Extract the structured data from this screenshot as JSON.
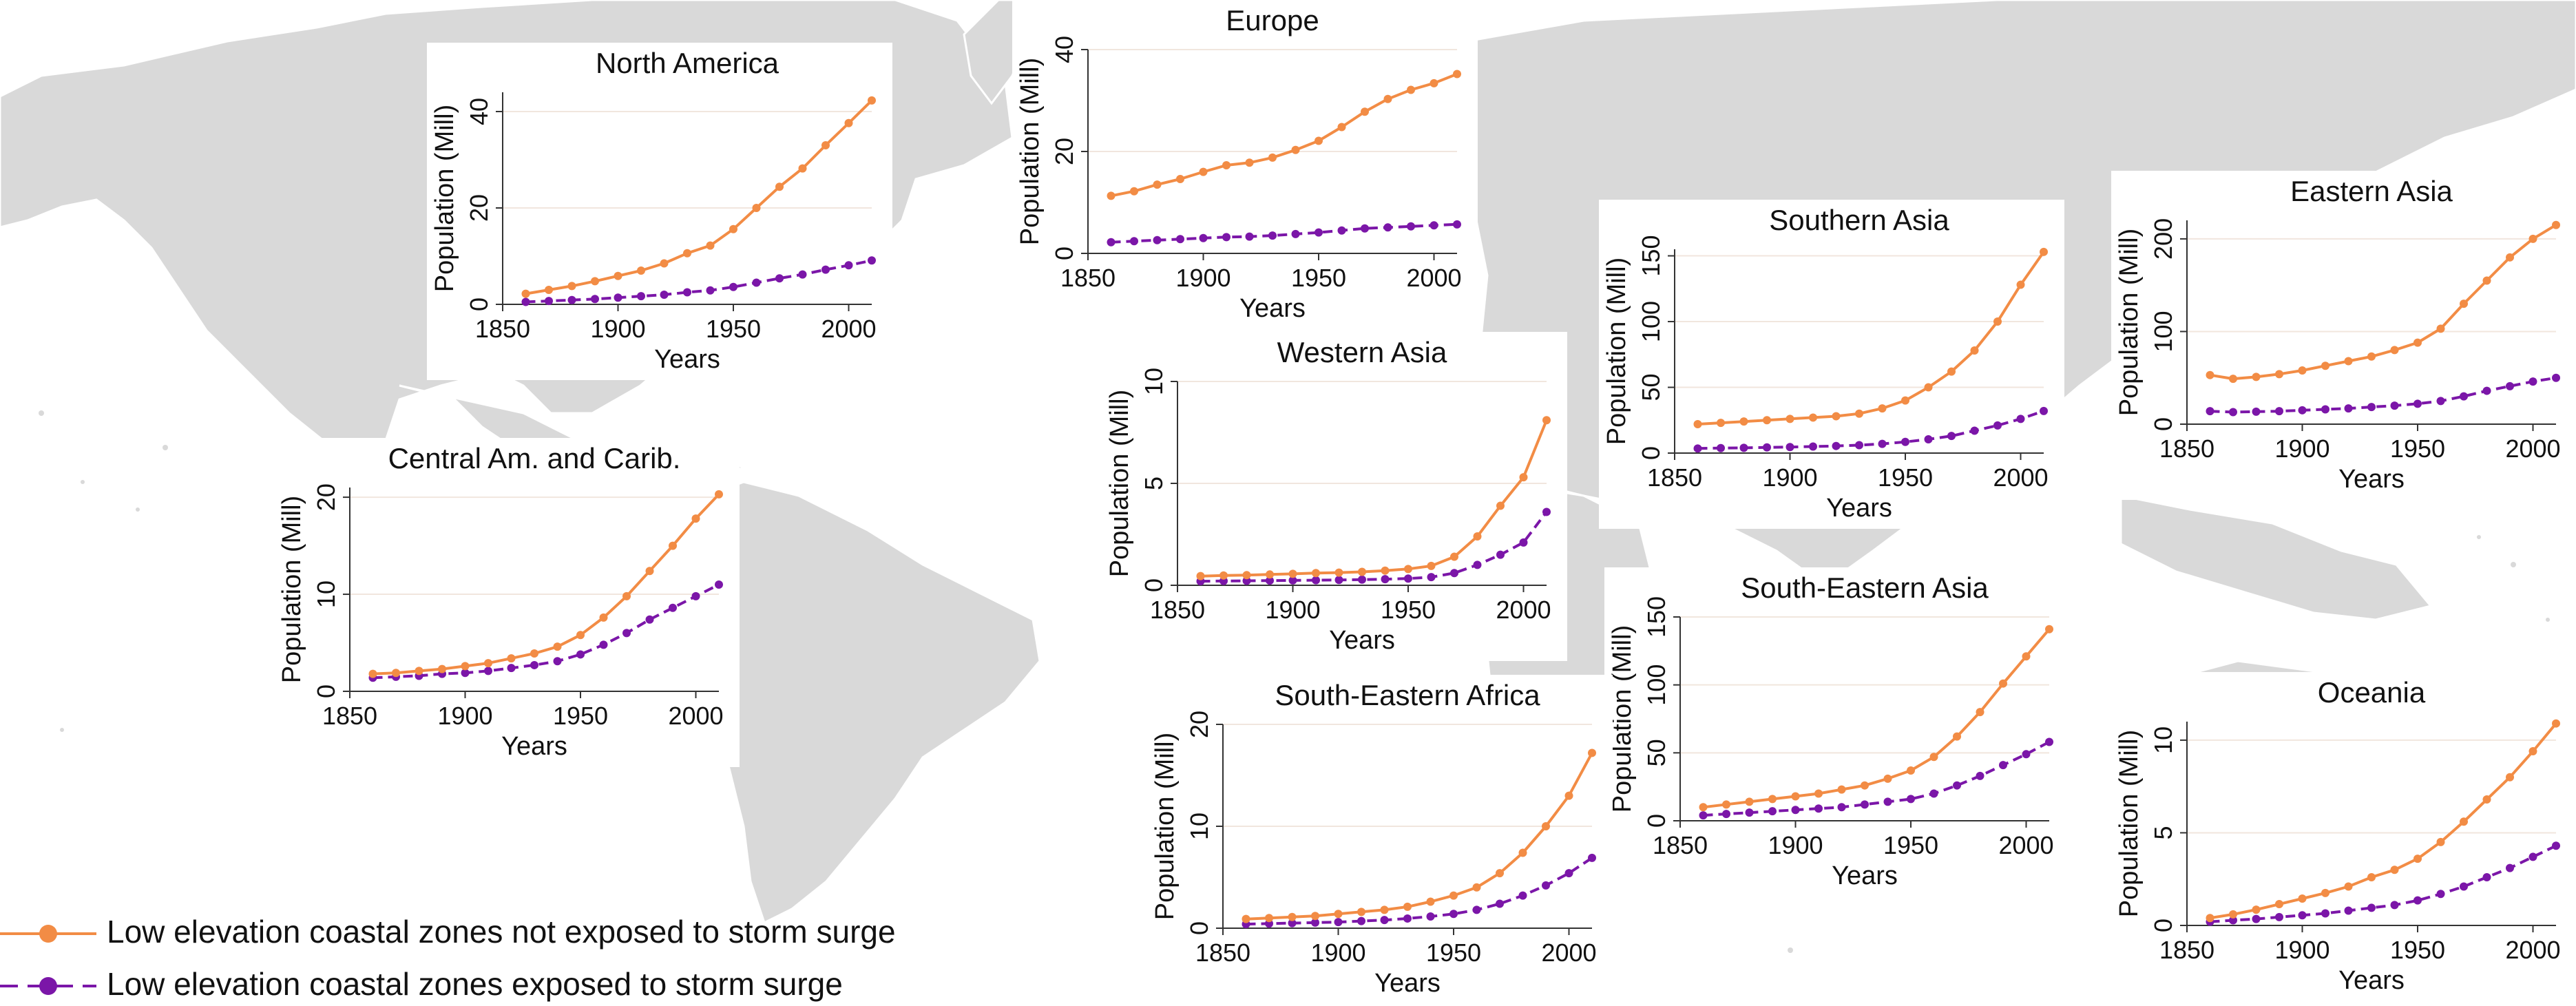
{
  "colors": {
    "not_exposed": "#f28c45",
    "exposed": "#7b16a8",
    "land": "#d9d9d9",
    "border": "#a8a8a8"
  },
  "legend": {
    "not_exposed_label": "Low elevation coastal zones not exposed to storm surge",
    "exposed_label": "Low elevation coastal zones exposed to storm surge"
  },
  "chart_data": [
    {
      "type": "line",
      "title": "North America",
      "xlabel": "Years",
      "ylabel": "Population (Mill)",
      "xlim": [
        1850,
        2010
      ],
      "ylim": [
        0,
        44
      ],
      "xticks": [
        "1850",
        "1900",
        "1950",
        "2000"
      ],
      "yticks": [
        "0",
        "20",
        "40"
      ],
      "x": [
        1860,
        1870,
        1880,
        1890,
        1900,
        1910,
        1920,
        1930,
        1940,
        1950,
        1960,
        1970,
        1980,
        1990,
        2000,
        2010
      ],
      "series": [
        {
          "name": "Low elevation coastal zones not exposed to storm surge",
          "values": [
            2.2,
            3.0,
            3.8,
            4.8,
            5.9,
            7.0,
            8.5,
            10.6,
            12.2,
            15.6,
            20.0,
            24.4,
            28.2,
            33.0,
            37.6,
            42.3
          ]
        },
        {
          "name": "Low elevation coastal zones exposed to storm surge",
          "values": [
            0.5,
            0.7,
            0.9,
            1.1,
            1.4,
            1.7,
            2.0,
            2.5,
            2.9,
            3.6,
            4.5,
            5.4,
            6.2,
            7.2,
            8.1,
            9.1
          ]
        }
      ]
    },
    {
      "type": "line",
      "title": "Europe",
      "xlabel": "Years",
      "ylabel": "Population (Mill)",
      "xlim": [
        1850,
        2010
      ],
      "ylim": [
        0,
        40
      ],
      "xticks": [
        "1850",
        "1900",
        "1950",
        "2000"
      ],
      "yticks": [
        "0",
        "20",
        "40"
      ],
      "x": [
        1860,
        1870,
        1880,
        1890,
        1900,
        1910,
        1920,
        1930,
        1940,
        1950,
        1960,
        1970,
        1980,
        1990,
        2000,
        2010
      ],
      "series": [
        {
          "name": "Low elevation coastal zones not exposed to storm surge",
          "values": [
            11.3,
            12.2,
            13.5,
            14.6,
            16.0,
            17.3,
            17.8,
            18.8,
            20.3,
            22.1,
            24.8,
            27.8,
            30.3,
            32.1,
            33.4,
            35.2
          ]
        },
        {
          "name": "Low elevation coastal zones exposed to storm surge",
          "values": [
            2.2,
            2.4,
            2.6,
            2.8,
            3.0,
            3.2,
            3.3,
            3.5,
            3.8,
            4.1,
            4.5,
            4.9,
            5.1,
            5.3,
            5.5,
            5.7
          ]
        }
      ]
    },
    {
      "type": "line",
      "title": "Western Asia",
      "xlabel": "Years",
      "ylabel": "Population (Mill)",
      "xlim": [
        1850,
        2010
      ],
      "ylim": [
        0,
        10
      ],
      "xticks": [
        "1850",
        "1900",
        "1950",
        "2000"
      ],
      "yticks": [
        "0",
        "5",
        "10"
      ],
      "x": [
        1860,
        1870,
        1880,
        1890,
        1900,
        1910,
        1920,
        1930,
        1940,
        1950,
        1960,
        1970,
        1980,
        1990,
        2000,
        2010
      ],
      "series": [
        {
          "name": "Low elevation coastal zones not exposed to storm surge",
          "values": [
            0.45,
            0.48,
            0.5,
            0.53,
            0.56,
            0.6,
            0.62,
            0.66,
            0.72,
            0.8,
            0.95,
            1.4,
            2.4,
            3.9,
            5.3,
            8.1
          ]
        },
        {
          "name": "Low elevation coastal zones exposed to storm surge",
          "values": [
            0.2,
            0.21,
            0.22,
            0.23,
            0.24,
            0.25,
            0.26,
            0.28,
            0.3,
            0.33,
            0.4,
            0.6,
            1.0,
            1.5,
            2.1,
            3.6
          ]
        }
      ]
    },
    {
      "type": "line",
      "title": "Southern Asia",
      "xlabel": "Years",
      "ylabel": "Population (Mill)",
      "xlim": [
        1850,
        2010
      ],
      "ylim": [
        0,
        155
      ],
      "xticks": [
        "1850",
        "1900",
        "1950",
        "2000"
      ],
      "yticks": [
        "0",
        "50",
        "100",
        "150"
      ],
      "x": [
        1860,
        1870,
        1880,
        1890,
        1900,
        1910,
        1920,
        1930,
        1940,
        1950,
        1960,
        1970,
        1980,
        1990,
        2000,
        2010
      ],
      "series": [
        {
          "name": "Low elevation coastal zones not exposed to storm surge",
          "values": [
            22,
            23,
            24,
            25,
            26,
            27,
            28,
            30,
            34,
            40,
            50,
            62,
            78,
            100,
            128,
            153
          ]
        },
        {
          "name": "Low elevation coastal zones exposed to storm surge",
          "values": [
            3.5,
            3.8,
            4.0,
            4.3,
            4.6,
            5.0,
            5.4,
            6.0,
            7.0,
            8.5,
            10.5,
            13,
            17,
            21,
            26,
            32
          ]
        }
      ]
    },
    {
      "type": "line",
      "title": "Eastern Asia",
      "xlabel": "Years",
      "ylabel": "Population (Mill)",
      "xlim": [
        1850,
        2010
      ],
      "ylim": [
        0,
        220
      ],
      "xticks": [
        "1850",
        "1900",
        "1950",
        "2000"
      ],
      "yticks": [
        "0",
        "100",
        "200"
      ],
      "x": [
        1860,
        1870,
        1880,
        1890,
        1900,
        1910,
        1920,
        1930,
        1940,
        1950,
        1960,
        1970,
        1980,
        1990,
        2000,
        2010
      ],
      "series": [
        {
          "name": "Low elevation coastal zones not exposed to storm surge",
          "values": [
            53,
            49,
            51,
            54,
            58,
            63,
            68,
            73,
            80,
            88,
            103,
            130,
            155,
            180,
            200,
            215
          ]
        },
        {
          "name": "Low elevation coastal zones exposed to storm surge",
          "values": [
            14,
            13,
            13.5,
            14,
            15,
            16,
            17,
            18.5,
            20,
            22,
            25,
            30,
            36,
            41,
            46,
            50
          ]
        }
      ]
    },
    {
      "type": "line",
      "title": "Central Am. and Carib.",
      "xlabel": "Years",
      "ylabel": "Population (Mill)",
      "xlim": [
        1850,
        2010
      ],
      "ylim": [
        0,
        21
      ],
      "xticks": [
        "1850",
        "1900",
        "1950",
        "2000"
      ],
      "yticks": [
        "0",
        "10",
        "20"
      ],
      "x": [
        1860,
        1870,
        1880,
        1890,
        1900,
        1910,
        1920,
        1930,
        1940,
        1950,
        1960,
        1970,
        1980,
        1990,
        2000,
        2010
      ],
      "series": [
        {
          "name": "Low elevation coastal zones not exposed to storm surge",
          "values": [
            1.8,
            1.9,
            2.1,
            2.3,
            2.6,
            2.9,
            3.4,
            3.9,
            4.6,
            5.8,
            7.6,
            9.8,
            12.4,
            15.0,
            17.8,
            20.3
          ]
        },
        {
          "name": "Low elevation coastal zones exposed to storm surge",
          "values": [
            1.4,
            1.5,
            1.6,
            1.8,
            1.9,
            2.1,
            2.4,
            2.7,
            3.1,
            3.8,
            4.8,
            6.0,
            7.4,
            8.6,
            9.8,
            11.0
          ]
        }
      ]
    },
    {
      "type": "line",
      "title": "South-Eastern Asia",
      "xlabel": "Years",
      "ylabel": "Population (Mill)",
      "xlim": [
        1850,
        2010
      ],
      "ylim": [
        0,
        150
      ],
      "xticks": [
        "1850",
        "1900",
        "1950",
        "2000"
      ],
      "yticks": [
        "0",
        "50",
        "100",
        "150"
      ],
      "x": [
        1860,
        1870,
        1880,
        1890,
        1900,
        1910,
        1920,
        1930,
        1940,
        1950,
        1960,
        1970,
        1980,
        1990,
        2000,
        2010
      ],
      "series": [
        {
          "name": "Low elevation coastal zones not exposed to storm surge",
          "values": [
            10,
            12,
            14,
            16,
            18,
            20,
            23,
            26,
            31,
            37,
            47,
            62,
            80,
            101,
            121,
            141
          ]
        },
        {
          "name": "Low elevation coastal zones exposed to storm surge",
          "values": [
            4,
            5,
            6,
            7,
            8,
            9,
            10,
            12,
            14,
            16,
            20,
            26,
            33,
            41,
            49,
            58
          ]
        }
      ]
    },
    {
      "type": "line",
      "title": "South-Eastern Africa",
      "xlabel": "Years",
      "ylabel": "Population (Mill)",
      "xlim": [
        1850,
        2010
      ],
      "ylim": [
        0,
        20
      ],
      "xticks": [
        "1850",
        "1900",
        "1950",
        "2000"
      ],
      "yticks": [
        "0",
        "10",
        "20"
      ],
      "x": [
        1860,
        1870,
        1880,
        1890,
        1900,
        1910,
        1920,
        1930,
        1940,
        1950,
        1960,
        1970,
        1980,
        1990,
        2000,
        2010
      ],
      "series": [
        {
          "name": "Low elevation coastal zones not exposed to storm surge",
          "values": [
            0.9,
            1.0,
            1.1,
            1.2,
            1.4,
            1.6,
            1.8,
            2.1,
            2.6,
            3.2,
            4.0,
            5.4,
            7.4,
            10.0,
            13.0,
            17.2
          ]
        },
        {
          "name": "Low elevation coastal zones exposed to storm surge",
          "values": [
            0.4,
            0.45,
            0.5,
            0.55,
            0.6,
            0.7,
            0.8,
            0.95,
            1.15,
            1.4,
            1.8,
            2.4,
            3.2,
            4.2,
            5.4,
            6.9
          ]
        }
      ]
    },
    {
      "type": "line",
      "title": "Oceania",
      "xlabel": "Years",
      "ylabel": "Population (Mill)",
      "xlim": [
        1850,
        2010
      ],
      "ylim": [
        0,
        11
      ],
      "xticks": [
        "1850",
        "1900",
        "1950",
        "2000"
      ],
      "yticks": [
        "0",
        "5",
        "10"
      ],
      "x": [
        1860,
        1870,
        1880,
        1890,
        1900,
        1910,
        1920,
        1930,
        1940,
        1950,
        1960,
        1970,
        1980,
        1990,
        2000,
        2010
      ],
      "series": [
        {
          "name": "Low elevation coastal zones not exposed to storm surge",
          "values": [
            0.4,
            0.6,
            0.85,
            1.15,
            1.45,
            1.75,
            2.1,
            2.6,
            3.0,
            3.6,
            4.5,
            5.6,
            6.8,
            8.0,
            9.4,
            10.9
          ]
        },
        {
          "name": "Low elevation coastal zones exposed to storm surge",
          "values": [
            0.2,
            0.28,
            0.35,
            0.45,
            0.55,
            0.65,
            0.8,
            0.95,
            1.1,
            1.35,
            1.7,
            2.1,
            2.6,
            3.1,
            3.7,
            4.3
          ]
        }
      ]
    }
  ]
}
